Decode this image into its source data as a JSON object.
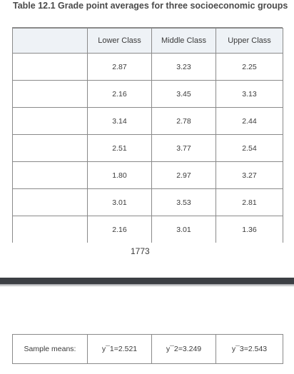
{
  "caption": "Table 12.1 Grade point averages for three socioeconomic groups",
  "table": {
    "headers": [
      "",
      "Lower Class",
      "Middle Class",
      "Upper Class"
    ],
    "rows": [
      [
        "",
        "2.87",
        "3.23",
        "2.25"
      ],
      [
        "",
        "2.16",
        "3.45",
        "3.13"
      ],
      [
        "",
        "3.14",
        "2.78",
        "2.44"
      ],
      [
        "",
        "2.51",
        "3.77",
        "2.54"
      ],
      [
        "",
        "1.80",
        "2.97",
        "3.27"
      ],
      [
        "",
        "3.01",
        "3.53",
        "2.81"
      ],
      [
        "",
        "2.16",
        "3.01",
        "1.36"
      ]
    ]
  },
  "page_number": "1773",
  "sample_means": {
    "label": "Sample means:",
    "values": [
      "y¯1=2.521",
      "y¯2=3.249",
      "y¯3=2.543"
    ]
  }
}
